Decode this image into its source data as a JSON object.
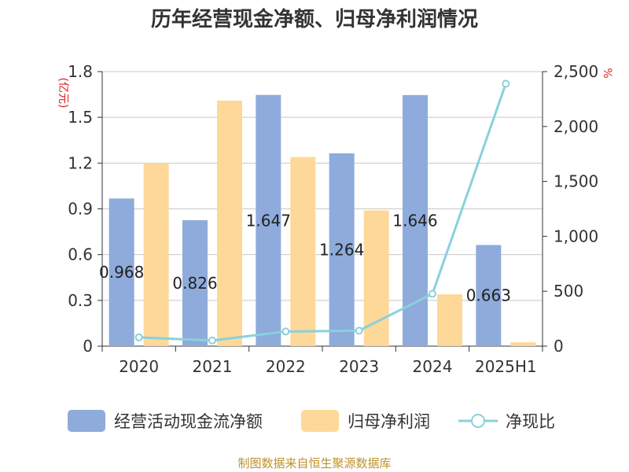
{
  "title": "历年经营现金净额、归母净利润情况",
  "footer": "制图数据来自恒生聚源数据库",
  "chart_data": {
    "type": "bar",
    "categories": [
      "2020",
      "2021",
      "2022",
      "2023",
      "2024",
      "2025H1"
    ],
    "series": [
      {
        "name": "经营活动现金流净额",
        "kind": "bar",
        "axis": "left",
        "color": "#8eabdb",
        "values": [
          0.968,
          0.826,
          1.647,
          1.264,
          1.646,
          0.663
        ],
        "labels": [
          "0.968",
          "0.826",
          "1.647",
          "1.264",
          "1.646",
          "0.663"
        ]
      },
      {
        "name": "归母净利润",
        "kind": "bar",
        "axis": "left",
        "color": "#fdd899",
        "values": [
          1.2,
          1.61,
          1.24,
          0.89,
          0.34,
          0.025
        ]
      },
      {
        "name": "净现比",
        "kind": "line",
        "axis": "right",
        "color": "#88d1dc",
        "values": [
          80,
          51,
          133,
          141,
          476,
          2390
        ]
      }
    ],
    "ylabel": "(亿元)",
    "y2label": "%",
    "ylim": [
      0,
      1.8
    ],
    "yticks": [
      "0",
      "0.3",
      "0.6",
      "0.9",
      "1.2",
      "1.5",
      "1.8"
    ],
    "y2lim": [
      0,
      2500
    ],
    "y2ticks": [
      "0",
      "500",
      "1,000",
      "1,500",
      "2,000",
      "2,500"
    ],
    "grid": true,
    "legend_position": "bottom"
  }
}
